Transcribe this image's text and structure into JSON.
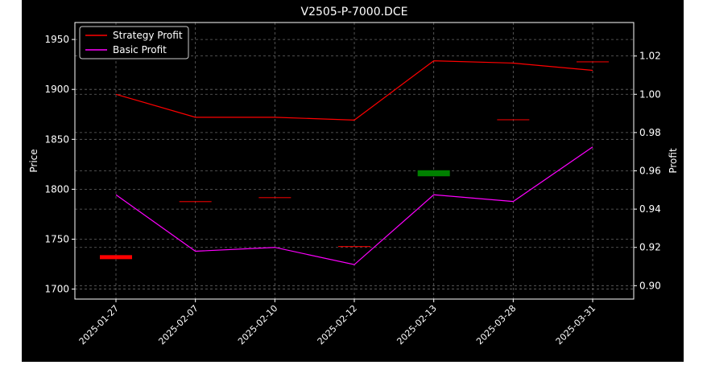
{
  "chart_data": {
    "type": "line",
    "title": "V2505-P-7000.DCE",
    "xlabel": "",
    "ylabel": "Price",
    "y2label": "Profit",
    "categories": [
      "2025-01-27",
      "2025-02-07",
      "2025-02-10",
      "2025-02-12",
      "2025-02-13",
      "2025-03-28",
      "2025-03-31"
    ],
    "ylim": [
      1690,
      1967
    ],
    "y_ticks": [
      "1700",
      "1750",
      "1800",
      "1850",
      "1900",
      "1950"
    ],
    "y2lim": [
      0.893,
      1.0375
    ],
    "y2_ticks": [
      "0.90",
      "0.92",
      "0.94",
      "0.96",
      "0.98",
      "1.00",
      "1.02"
    ],
    "grid": true,
    "legend_position": "top-left",
    "series": [
      {
        "name": "Strategy Profit",
        "axis": "right",
        "color": "#ff0000",
        "values": [
          1.0,
          0.988,
          0.988,
          0.9865,
          1.0175,
          1.0163,
          1.0125
        ]
      },
      {
        "name": "Basic Profit",
        "axis": "right",
        "color": "#ff00ff",
        "values": [
          0.9475,
          0.918,
          0.92,
          0.911,
          0.9475,
          0.944,
          0.9725
        ]
      }
    ],
    "price_candles": [
      {
        "category": "2025-01-27",
        "open": 1730,
        "close": 1734,
        "color": "#ff0000"
      },
      {
        "category": "2025-02-07",
        "open": 1788,
        "close": 1788,
        "color": "#ff0000"
      },
      {
        "category": "2025-02-10",
        "open": 1792,
        "close": 1792,
        "color": "#ff0000"
      },
      {
        "category": "2025-02-12",
        "open": 1743,
        "close": 1743,
        "color": "#ff0000"
      },
      {
        "category": "2025-02-13",
        "open": 1813,
        "close": 1819,
        "color": "#008000"
      },
      {
        "category": "2025-03-28",
        "open": 1870,
        "close": 1870,
        "color": "#ff0000"
      },
      {
        "category": "2025-03-31",
        "open": 1928,
        "close": 1928,
        "color": "#ff0000"
      }
    ],
    "colors": {
      "background": "#000000",
      "axes": "#ffffff",
      "grid": "#808080"
    }
  }
}
